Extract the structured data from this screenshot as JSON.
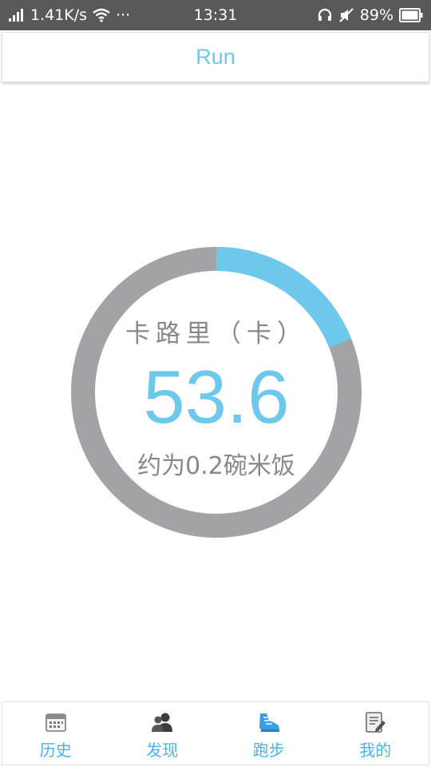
{
  "status_bar": {
    "network_speed": "1.41K/s",
    "more": "···",
    "time": "13:31",
    "battery": "89%",
    "icons": [
      "signal-icon",
      "wifi-icon",
      "headset-icon",
      "mute-icon",
      "battery-icon"
    ]
  },
  "header": {
    "title": "Run"
  },
  "calorie_ring": {
    "label": "卡路里（卡）",
    "value": "53.6",
    "equivalent": "约为0.2碗米饭",
    "progress": 0.19,
    "colors": {
      "progress": "#6ec8ec",
      "track": "#a3a3a7"
    }
  },
  "bottom_nav": {
    "items": [
      {
        "label": "历史",
        "icon": "calendar-icon"
      },
      {
        "label": "发现",
        "icon": "users-icon"
      },
      {
        "label": "跑步",
        "icon": "shoe-icon"
      },
      {
        "label": "我的",
        "icon": "profile-notes-icon"
      }
    ]
  },
  "colors": {
    "accent": "#6ec8ec",
    "status_bar": "#595959",
    "nav_text": "#4cb3e6"
  }
}
